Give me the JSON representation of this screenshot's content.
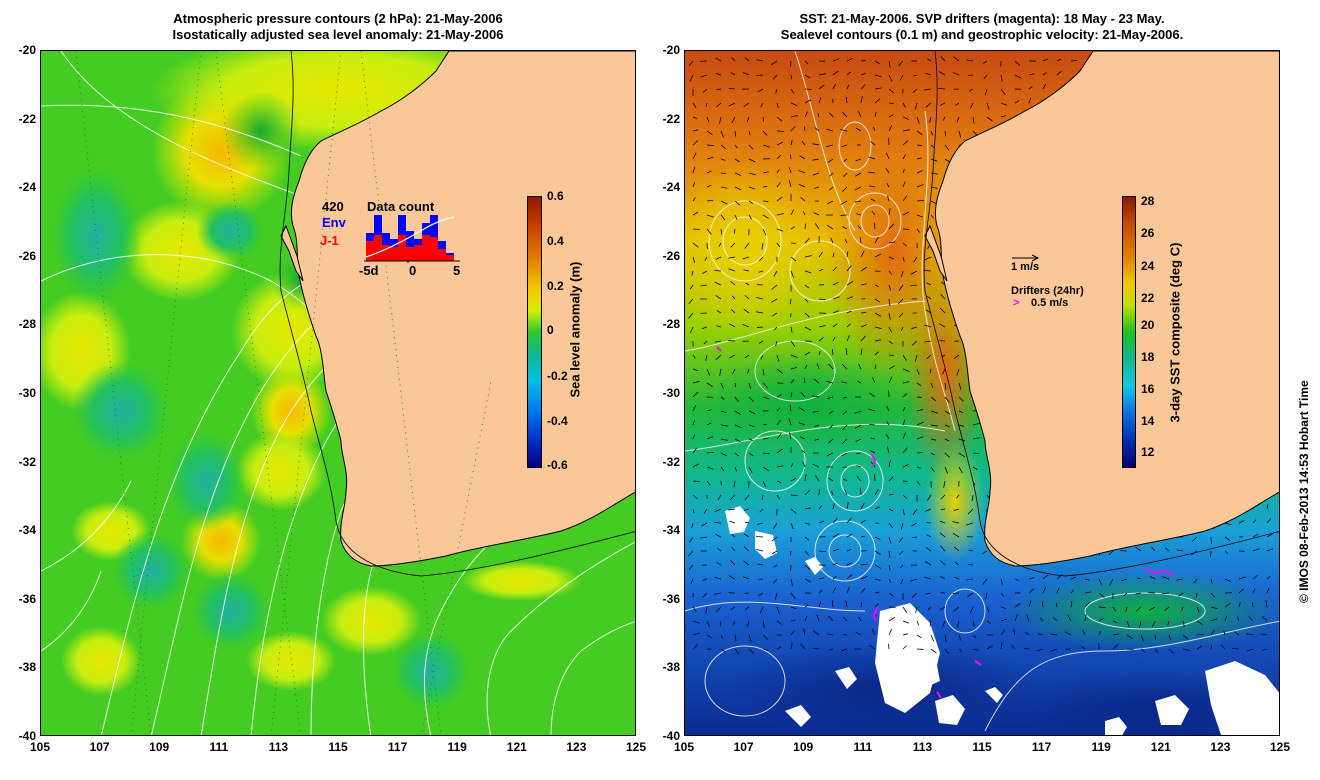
{
  "left": {
    "title_line1": "Atmospheric pressure contours (2 hPa): 21-May-2006",
    "title_line2": "Isostatically adjusted sea level anomaly: 21-May-2006",
    "colorbar": {
      "label": "Sea level anomaly (m)",
      "ticks": [
        "0.6",
        "0.4",
        "0.2",
        "0",
        "-0.2",
        "-0.4",
        "-0.6"
      ]
    },
    "data_count": {
      "title": "Data count",
      "total": "420",
      "env_label": "Env",
      "j1_label": "J-1",
      "x_ticks": [
        "-5d",
        "0",
        "5"
      ],
      "env_color": "#0000ff",
      "j1_color": "#ff0000"
    }
  },
  "right": {
    "title_line1": "SST: 21-May-2006. SVP drifters (magenta): 18 May - 23 May.",
    "title_line2": "Sealevel contours (0.1 m) and geostrophic velocity: 21-May-2006.",
    "colorbar": {
      "label": "3-day SST composite (deg C)",
      "ticks": [
        "28",
        "26",
        "24",
        "22",
        "20",
        "18",
        "16",
        "14",
        "12"
      ]
    },
    "velocity_legend": "1 m/s",
    "drifters_legend": "Drifters (24hr)",
    "drifters_speed": "0.5 m/s"
  },
  "axes": {
    "y_ticks": [
      "-20",
      "-22",
      "-24",
      "-26",
      "-28",
      "-30",
      "-32",
      "-34",
      "-36",
      "-38",
      "-40"
    ],
    "x_ticks": [
      "105",
      "107",
      "109",
      "111",
      "113",
      "115",
      "117",
      "119",
      "121",
      "123",
      "125"
    ],
    "lon_range": [
      105,
      125
    ],
    "lat_range": [
      -40,
      -20
    ]
  },
  "copyright": "© IMOS 08-Feb-2013 14:53 Hobart Time",
  "colors": {
    "land": "#fac898",
    "sla_background": "#44cc22",
    "sst_warm": "#d9621a",
    "sst_cold": "#1a4fc4",
    "drifter": "#ff00ff"
  }
}
